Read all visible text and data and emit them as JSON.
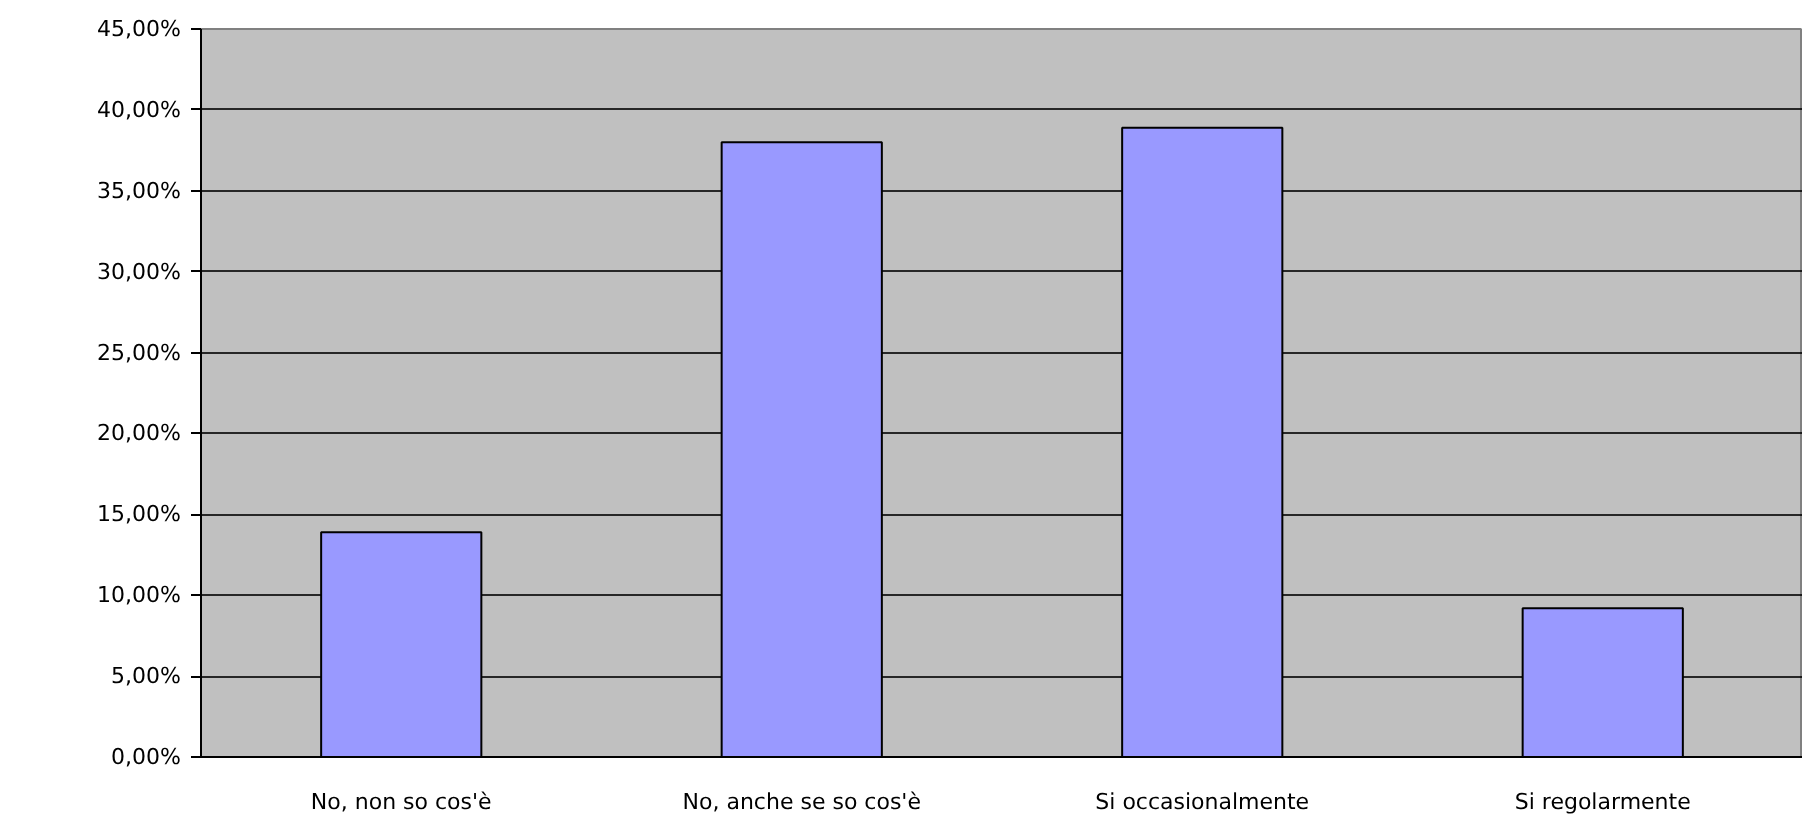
{
  "chart_data": {
    "type": "bar",
    "categories": [
      "No, non so cos'è",
      "No, anche se so cos'è",
      "Si occasionalmente",
      "Si regolarmente"
    ],
    "values": [
      13.9,
      38.0,
      38.9,
      9.2
    ],
    "color": "#9999ff",
    "ylim": [
      0,
      45
    ],
    "yticks": [
      {
        "value": 0,
        "label": "0,00%"
      },
      {
        "value": 5,
        "label": "5,00%"
      },
      {
        "value": 10,
        "label": "10,00%"
      },
      {
        "value": 15,
        "label": "15,00%"
      },
      {
        "value": 20,
        "label": "20,00%"
      },
      {
        "value": 25,
        "label": "25,00%"
      },
      {
        "value": 30,
        "label": "30,00%"
      },
      {
        "value": 35,
        "label": "35,00%"
      },
      {
        "value": 40,
        "label": "40,00%"
      },
      {
        "value": 45,
        "label": "45,00%"
      }
    ],
    "grid": "y"
  }
}
